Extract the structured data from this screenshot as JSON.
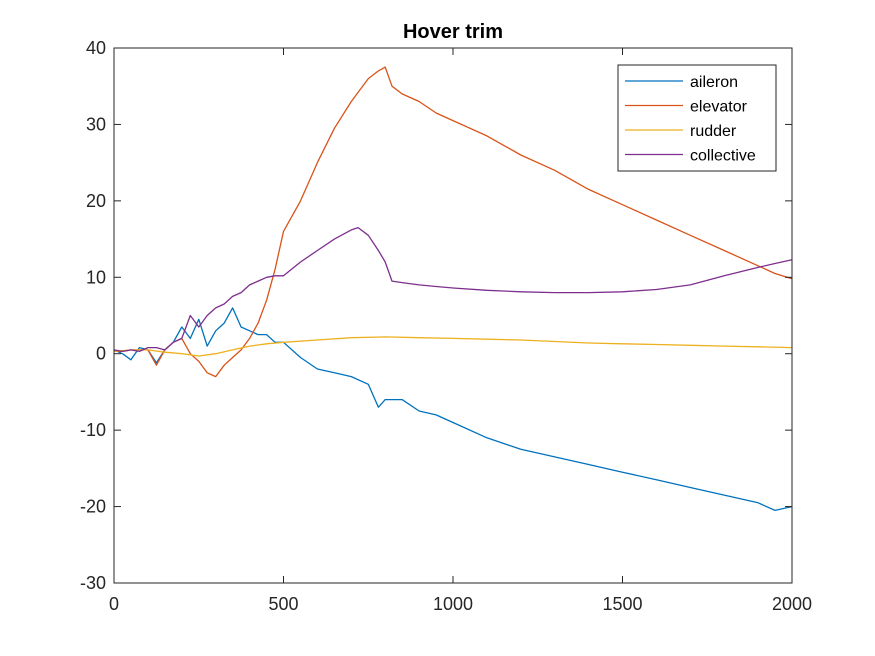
{
  "chart_data": {
    "type": "line",
    "title": "Hover trim",
    "xlabel": "",
    "ylabel": "",
    "xlim": [
      0,
      2000
    ],
    "ylim": [
      -30,
      40
    ],
    "xticks": [
      0,
      500,
      1000,
      1500,
      2000
    ],
    "yticks": [
      -30,
      -20,
      -10,
      0,
      10,
      20,
      30,
      40
    ],
    "grid": false,
    "legend_position": "top-right",
    "series": [
      {
        "name": "aileron",
        "color": "#0072BD",
        "x": [
          0,
          25,
          50,
          75,
          100,
          125,
          150,
          175,
          200,
          225,
          250,
          275,
          300,
          325,
          350,
          375,
          400,
          425,
          450,
          475,
          500,
          550,
          600,
          650,
          700,
          750,
          780,
          800,
          820,
          850,
          900,
          950,
          1000,
          1100,
          1200,
          1300,
          1400,
          1500,
          1600,
          1700,
          1800,
          1900,
          1950,
          2000
        ],
        "y": [
          0.5,
          0,
          -0.8,
          0.8,
          0.5,
          -1.2,
          0.5,
          1.5,
          3.5,
          2,
          4.5,
          1,
          3,
          4,
          6,
          3.5,
          3,
          2.5,
          2.5,
          1.5,
          1.5,
          -0.5,
          -2,
          -2.5,
          -3,
          -4,
          -7,
          -6,
          -6,
          -6,
          -7.5,
          -8,
          -9,
          -11,
          -12.5,
          -13.5,
          -14.5,
          -15.5,
          -16.5,
          -17.5,
          -18.5,
          -19.5,
          -20.5,
          -20
        ]
      },
      {
        "name": "elevator",
        "color": "#D95319",
        "x": [
          0,
          25,
          50,
          75,
          100,
          125,
          150,
          175,
          200,
          225,
          250,
          275,
          300,
          325,
          350,
          375,
          400,
          425,
          450,
          475,
          500,
          550,
          600,
          650,
          700,
          750,
          780,
          800,
          820,
          850,
          900,
          950,
          1000,
          1100,
          1200,
          1300,
          1400,
          1500,
          1600,
          1700,
          1800,
          1900,
          1950,
          2000
        ],
        "y": [
          0.3,
          0.3,
          0.5,
          0.5,
          0.5,
          -1.5,
          0.5,
          1.5,
          2,
          0,
          -1,
          -2.5,
          -3,
          -1.5,
          -0.5,
          0.5,
          2,
          4,
          7,
          11,
          16,
          20,
          25,
          29.5,
          33,
          36,
          37,
          37.5,
          35,
          34,
          33,
          31.5,
          30.5,
          28.5,
          26,
          24,
          21.5,
          19.5,
          17.5,
          15.5,
          13.5,
          11.5,
          10.5,
          9.8
        ]
      },
      {
        "name": "rudder",
        "color": "#EDB120",
        "x": [
          0,
          50,
          100,
          150,
          200,
          250,
          300,
          350,
          400,
          450,
          500,
          600,
          700,
          800,
          900,
          1000,
          1100,
          1200,
          1300,
          1400,
          1500,
          1600,
          1700,
          1800,
          1900,
          2000
        ],
        "y": [
          0.3,
          0.5,
          0.5,
          0.2,
          0,
          -0.3,
          0,
          0.5,
          1,
          1.3,
          1.5,
          1.8,
          2.1,
          2.2,
          2.1,
          2,
          1.9,
          1.8,
          1.6,
          1.4,
          1.3,
          1.2,
          1.1,
          1,
          0.9,
          0.8
        ]
      },
      {
        "name": "collective",
        "color": "#7E2F8E",
        "x": [
          0,
          25,
          50,
          75,
          100,
          125,
          150,
          175,
          200,
          225,
          250,
          275,
          300,
          325,
          350,
          375,
          400,
          425,
          450,
          475,
          500,
          550,
          600,
          650,
          700,
          720,
          750,
          780,
          800,
          820,
          850,
          900,
          950,
          1000,
          1100,
          1200,
          1300,
          1400,
          1500,
          1600,
          1700,
          1800,
          1900,
          1950,
          2000
        ],
        "y": [
          0.5,
          0.3,
          0.5,
          0.3,
          0.8,
          0.8,
          0.5,
          1.5,
          2,
          5,
          3.5,
          5,
          6,
          6.5,
          7.5,
          8,
          9,
          9.5,
          10,
          10.2,
          10.2,
          12,
          13.5,
          15,
          16.2,
          16.5,
          15.5,
          13.5,
          12,
          9.5,
          9.3,
          9,
          8.8,
          8.6,
          8.3,
          8.1,
          8,
          8,
          8.1,
          8.4,
          9,
          10.2,
          11.3,
          11.8,
          12.3
        ]
      }
    ]
  }
}
